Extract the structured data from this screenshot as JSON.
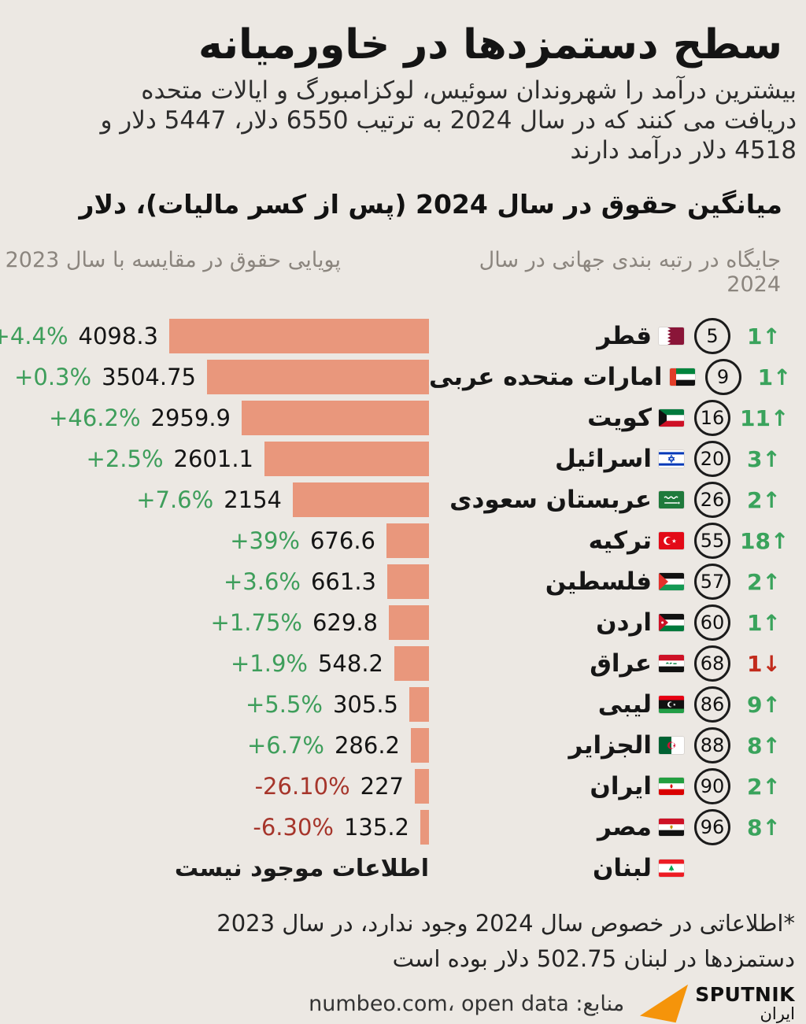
{
  "page": {
    "title": "سطح دستمزدها در خاورمیانه",
    "subtitle_lines": [
      "بیشترین درآمد را شهروندان سوئیس، لوکزامبورگ و ایالات متحده",
      "دریافت می کنند که در سال 2024 به ترتیب 6550 دلار، 5447 دلار و",
      "4518 دلار درآمد دارند"
    ],
    "background": "#ece8e3"
  },
  "chart_data": {
    "type": "bar",
    "title": "میانگین حقوق در سال 2024 (پس از کسر مالیات)، دلار",
    "column_headers": {
      "rank": "جایگاه در رتبه بندی جهانی در سال 2024",
      "dynamics": "پویایی حقوق در مقایسه با سال 2023"
    },
    "bar_color": "#e9977c",
    "xlim": [
      0,
      4098.3
    ],
    "no_data_label": "اطلاعات موجود نیست",
    "rows": [
      {
        "country": "قطر",
        "flag": "qatar",
        "rank": "5",
        "rank_change": "1",
        "rank_dir": "up",
        "value": 4098.3,
        "value_label": "4098.3",
        "pct_label": "+4.4%",
        "pct_dir": "up"
      },
      {
        "country": "امارات متحده عربی",
        "flag": "uae",
        "rank": "9",
        "rank_change": "1",
        "rank_dir": "up",
        "value": 3504.75,
        "value_label": "3504.75",
        "pct_label": "+0.3%",
        "pct_dir": "up"
      },
      {
        "country": "کویت",
        "flag": "kuwait",
        "rank": "16",
        "rank_change": "11",
        "rank_dir": "up",
        "value": 2959.9,
        "value_label": "2959.9",
        "pct_label": "+46.2%",
        "pct_dir": "up"
      },
      {
        "country": "اسرائیل",
        "flag": "israel",
        "rank": "20",
        "rank_change": "3",
        "rank_dir": "up",
        "value": 2601.1,
        "value_label": "2601.1",
        "pct_label": "+2.5%",
        "pct_dir": "up"
      },
      {
        "country": "عربستان سعودی",
        "flag": "saudi",
        "rank": "26",
        "rank_change": "2",
        "rank_dir": "up",
        "value": 2154,
        "value_label": "2154",
        "pct_label": "+7.6%",
        "pct_dir": "up"
      },
      {
        "country": "ترکیه",
        "flag": "turkey",
        "rank": "55",
        "rank_change": "18",
        "rank_dir": "up",
        "value": 676.6,
        "value_label": "676.6",
        "pct_label": "+39%",
        "pct_dir": "up"
      },
      {
        "country": "فلسطین",
        "flag": "palestine",
        "rank": "57",
        "rank_change": "2",
        "rank_dir": "up",
        "value": 661.3,
        "value_label": "661.3",
        "pct_label": "+3.6%",
        "pct_dir": "up"
      },
      {
        "country": "اردن",
        "flag": "jordan",
        "rank": "60",
        "rank_change": "1",
        "rank_dir": "up",
        "value": 629.8,
        "value_label": "629.8",
        "pct_label": "+1.75%",
        "pct_dir": "up"
      },
      {
        "country": "عراق",
        "flag": "iraq",
        "rank": "68",
        "rank_change": "1",
        "rank_dir": "down",
        "value": 548.2,
        "value_label": "548.2",
        "pct_label": "+1.9%",
        "pct_dir": "up"
      },
      {
        "country": "لیبی",
        "flag": "libya",
        "rank": "86",
        "rank_change": "9",
        "rank_dir": "up",
        "value": 305.5,
        "value_label": "305.5",
        "pct_label": "+5.5%",
        "pct_dir": "up"
      },
      {
        "country": "الجزایر",
        "flag": "algeria",
        "rank": "88",
        "rank_change": "8",
        "rank_dir": "up",
        "value": 286.2,
        "value_label": "286.2",
        "pct_label": "+6.7%",
        "pct_dir": "up"
      },
      {
        "country": "ایران",
        "flag": "iran",
        "rank": "90",
        "rank_change": "2",
        "rank_dir": "up",
        "value": 227,
        "value_label": "227",
        "pct_label": "-26.10%",
        "pct_dir": "down"
      },
      {
        "country": "مصر",
        "flag": "egypt",
        "rank": "96",
        "rank_change": "8",
        "rank_dir": "up",
        "value": 135.2,
        "value_label": "135.2",
        "pct_label": "-6.30%",
        "pct_dir": "down"
      },
      {
        "country": "لبنان",
        "flag": "lebanon",
        "rank": null,
        "no_data": true
      }
    ]
  },
  "footer": {
    "note_lines": [
      "*اطلاعاتی در خصوص سال 2024 وجود ندارد، در سال 2023",
      "دستمزدها در لبنان 502.75 دلار بوده است"
    ],
    "source": "منابع: numbeo.com، open data",
    "logo": {
      "brand": "SPUTNIK",
      "region": "ایران"
    }
  },
  "colors": {
    "bar": "#e9977c",
    "green": "#3e9e5b",
    "red_text": "#a6352b",
    "red_arrow": "#c22b1c",
    "background": "#ece8e3"
  }
}
